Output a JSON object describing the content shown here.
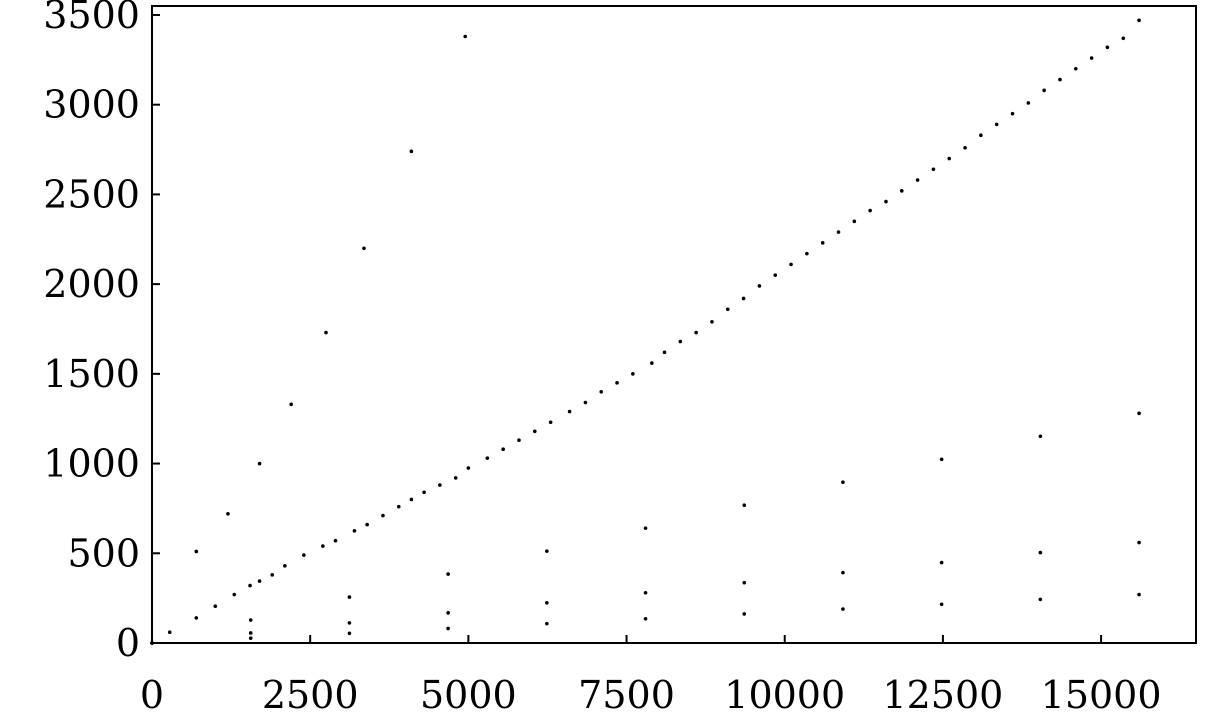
{
  "chart_data": {
    "type": "scatter",
    "title": "",
    "xlabel": "",
    "ylabel": "",
    "xlim": [
      0,
      16500
    ],
    "ylim": [
      0,
      3550
    ],
    "x_ticks": [
      0,
      2500,
      5000,
      7500,
      10000,
      12500,
      15000
    ],
    "y_ticks": [
      0,
      500,
      1000,
      1500,
      2000,
      2500,
      3000,
      3500
    ],
    "x_tick_labels": [
      "0",
      "2500",
      "5000",
      "7500",
      "10000",
      "12500",
      "15000"
    ],
    "y_tick_labels": [
      "0",
      "500",
      "1000",
      "1500",
      "2000",
      "2500",
      "3000",
      "3500"
    ],
    "grid": false,
    "legend": "none",
    "marker_color": "#000000",
    "series": [
      {
        "points": [
          [
            0,
            0
          ],
          [
            280,
            60
          ],
          [
            700,
            140
          ],
          [
            1000,
            205
          ],
          [
            1300,
            270
          ],
          [
            1550,
            320
          ],
          [
            1700,
            345
          ],
          [
            1900,
            380
          ],
          [
            2100,
            430
          ],
          [
            2400,
            490
          ],
          [
            2700,
            540
          ],
          [
            2900,
            570
          ],
          [
            3200,
            625
          ],
          [
            3400,
            660
          ],
          [
            3650,
            710
          ],
          [
            3900,
            760
          ],
          [
            4100,
            800
          ],
          [
            4300,
            840
          ],
          [
            4550,
            880
          ],
          [
            4800,
            920
          ],
          [
            5000,
            975
          ],
          [
            5300,
            1030
          ],
          [
            5550,
            1080
          ],
          [
            5800,
            1130
          ],
          [
            6050,
            1180
          ],
          [
            6300,
            1230
          ],
          [
            6600,
            1290
          ],
          [
            6850,
            1340
          ],
          [
            7100,
            1400
          ],
          [
            7350,
            1450
          ],
          [
            7600,
            1500
          ],
          [
            7900,
            1560
          ],
          [
            8100,
            1620
          ],
          [
            8350,
            1680
          ],
          [
            8600,
            1730
          ],
          [
            8850,
            1790
          ],
          [
            9100,
            1860
          ],
          [
            9350,
            1920
          ],
          [
            9600,
            1990
          ],
          [
            9850,
            2050
          ],
          [
            10100,
            2110
          ],
          [
            10350,
            2170
          ],
          [
            10600,
            2230
          ],
          [
            10850,
            2290
          ],
          [
            11100,
            2350
          ],
          [
            11350,
            2410
          ],
          [
            11600,
            2460
          ],
          [
            11850,
            2520
          ],
          [
            12100,
            2580
          ],
          [
            12350,
            2640
          ],
          [
            12600,
            2700
          ],
          [
            12850,
            2760
          ],
          [
            13100,
            2830
          ],
          [
            13350,
            2890
          ],
          [
            13600,
            2950
          ],
          [
            13850,
            3010
          ],
          [
            14100,
            3080
          ],
          [
            14350,
            3140
          ],
          [
            14600,
            3200
          ],
          [
            14850,
            3260
          ],
          [
            15100,
            3320
          ],
          [
            15350,
            3370
          ],
          [
            15600,
            3470
          ]
        ]
      },
      {
        "points": [
          [
            0,
            0
          ],
          [
            700,
            510
          ],
          [
            1200,
            720
          ],
          [
            1700,
            1000
          ],
          [
            2200,
            1330
          ],
          [
            2750,
            1730
          ],
          [
            3350,
            2200
          ],
          [
            4100,
            2740
          ],
          [
            4950,
            3380
          ]
        ]
      },
      {
        "points": [
          [
            0,
            0
          ],
          [
            1560,
            128
          ],
          [
            3120,
            256
          ],
          [
            4680,
            384
          ],
          [
            6240,
            512
          ],
          [
            7800,
            640
          ],
          [
            9360,
            768
          ],
          [
            10920,
            896
          ],
          [
            12480,
            1024
          ],
          [
            14040,
            1152
          ],
          [
            15600,
            1280
          ]
        ]
      },
      {
        "points": [
          [
            0,
            0
          ],
          [
            1560,
            56
          ],
          [
            3120,
            112
          ],
          [
            4680,
            168
          ],
          [
            6240,
            224
          ],
          [
            7800,
            280
          ],
          [
            9360,
            336
          ],
          [
            10920,
            392
          ],
          [
            12480,
            448
          ],
          [
            14040,
            504
          ],
          [
            15600,
            560
          ]
        ]
      },
      {
        "points": [
          [
            0,
            0
          ],
          [
            1560,
            27
          ],
          [
            3120,
            54
          ],
          [
            4680,
            81
          ],
          [
            6240,
            108
          ],
          [
            7800,
            135
          ],
          [
            9360,
            162
          ],
          [
            10920,
            189
          ],
          [
            12480,
            216
          ],
          [
            14040,
            243
          ],
          [
            15600,
            270
          ]
        ]
      }
    ]
  }
}
